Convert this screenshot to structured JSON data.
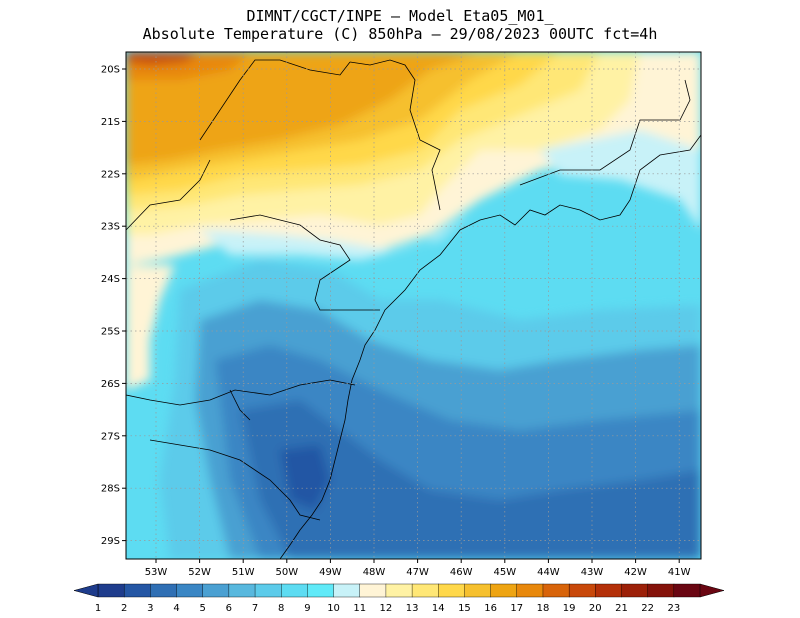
{
  "title": {
    "line1": "DIMNT/CGCT/INPE –  Model Eta05_M01_",
    "line2": "Absolute Temperature (C) 850hPa –  29/08/2023 00UTC fct=4h"
  },
  "map": {
    "lat_labels": [
      "20S",
      "21S",
      "22S",
      "23S",
      "24S",
      "25S",
      "26S",
      "27S",
      "28S",
      "29S"
    ],
    "lon_labels": [
      "53W",
      "52W",
      "51W",
      "50W",
      "49W",
      "48W",
      "47W",
      "46W",
      "45W",
      "44W",
      "43W",
      "42W",
      "41W"
    ]
  },
  "colorbar": {
    "labels": [
      "1",
      "2",
      "3",
      "4",
      "5",
      "6",
      "7",
      "8",
      "9",
      "10",
      "11",
      "12",
      "13",
      "14",
      "15",
      "16",
      "17",
      "18",
      "19",
      "20",
      "21",
      "22",
      "23"
    ],
    "colors": [
      "#1e3c8c",
      "#2456a4",
      "#2f6fb4",
      "#3a86c4",
      "#4aa0d2",
      "#58b8de",
      "#5ccbea",
      "#5ddcf2",
      "#60eaf8",
      "#c8f2f8",
      "#fff4d6",
      "#fff2a4",
      "#ffe776",
      "#ffd84a",
      "#f6c02e",
      "#eea412",
      "#e8880c",
      "#d8640a",
      "#c8480a",
      "#b43008",
      "#9c2008",
      "#84120a",
      "#6a0612"
    ]
  }
}
